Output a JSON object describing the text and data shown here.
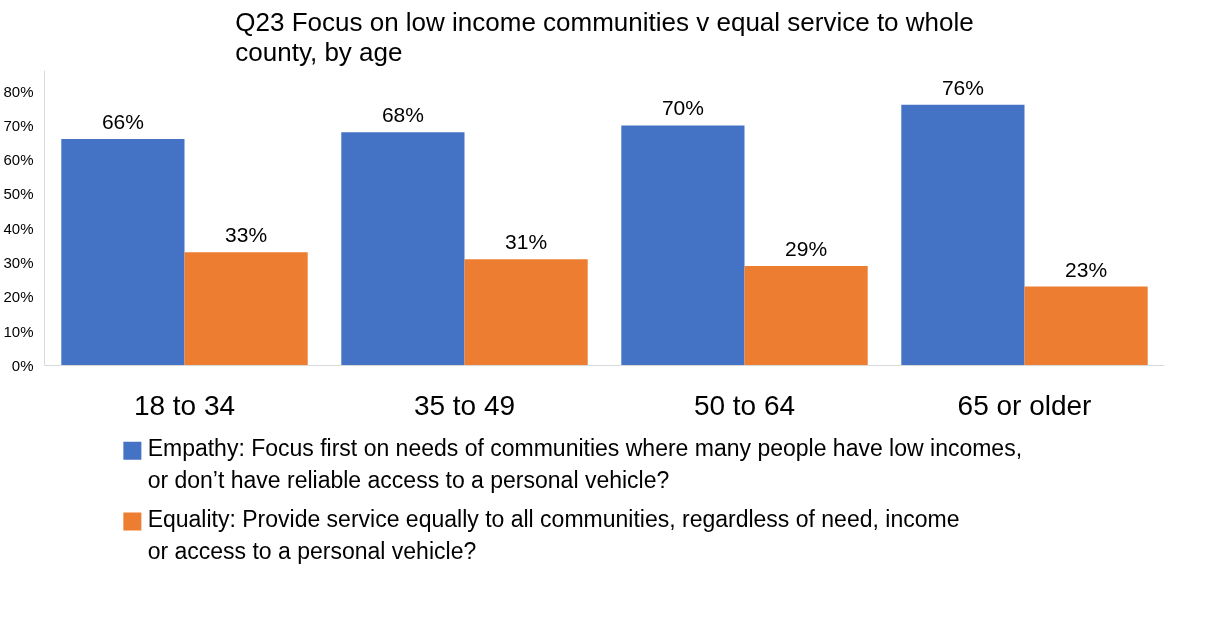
{
  "chart_data": {
    "type": "bar",
    "title": "Q23 Focus on low income communities v equal service to whole county, by age",
    "categories": [
      "18 to 34",
      "35 to 49",
      "50 to 64",
      "65 or older"
    ],
    "series": [
      {
        "name": "Empathy: Focus first on needs of communities where many people have low incomes, or don’t have reliable access to a personal vehicle?",
        "color": "#4472c4",
        "values": [
          66,
          68,
          70,
          76
        ],
        "value_labels": [
          "66%",
          "68%",
          "70%",
          "76%"
        ]
      },
      {
        "name": "Equality: Provide service equally to all communities, regardless of need, income or access to a personal vehicle?",
        "color": "#ed7d31",
        "values": [
          33,
          31,
          29,
          23
        ],
        "value_labels": [
          "33%",
          "31%",
          "29%",
          "23%"
        ]
      }
    ],
    "ylim": [
      0,
      86
    ],
    "yticks": [
      {
        "value": 0,
        "label": "0%"
      },
      {
        "value": 10,
        "label": "10%"
      },
      {
        "value": 20,
        "label": "20%"
      },
      {
        "value": 30,
        "label": "30%"
      },
      {
        "value": 40,
        "label": "40%"
      },
      {
        "value": 50,
        "label": "50%"
      },
      {
        "value": 60,
        "label": "60%"
      },
      {
        "value": 70,
        "label": "70%"
      },
      {
        "value": 80,
        "label": "80%"
      }
    ],
    "grid": false,
    "legend": "bottom"
  }
}
